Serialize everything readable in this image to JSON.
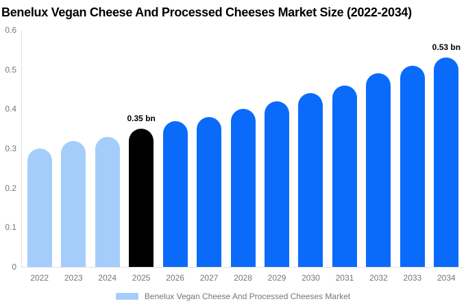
{
  "title": "Benelux Vegan Cheese And Processed Cheeses Market Size (2022-2034)",
  "colors": {
    "historical_bar": "#a5cdfb",
    "highlight_bar": "#000000",
    "forecast_bar": "#0a6bfb",
    "axis_line": "#e0e0e0",
    "tick_text": "#757575",
    "annotation_text": "#000000"
  },
  "chart_data": {
    "type": "bar",
    "title": "Benelux Vegan Cheese And Processed Cheeses Market Size (2022-2034)",
    "categories": [
      "2022",
      "2023",
      "2024",
      "2025",
      "2026",
      "2027",
      "2028",
      "2029",
      "2030",
      "2031",
      "2032",
      "2033",
      "2034"
    ],
    "values": [
      0.3,
      0.32,
      0.33,
      0.35,
      0.37,
      0.38,
      0.4,
      0.42,
      0.44,
      0.46,
      0.49,
      0.51,
      0.53
    ],
    "bar_colors": [
      "#a5cdfb",
      "#a5cdfb",
      "#a5cdfb",
      "#000000",
      "#0a6bfb",
      "#0a6bfb",
      "#0a6bfb",
      "#0a6bfb",
      "#0a6bfb",
      "#0a6bfb",
      "#0a6bfb",
      "#0a6bfb",
      "#0a6bfb"
    ],
    "unit": "bn",
    "xlabel": "",
    "ylabel": "",
    "ylim": [
      0,
      0.6
    ],
    "yticks": [
      0,
      0.1,
      0.2,
      0.3,
      0.4,
      0.5,
      0.6
    ],
    "ytick_labels": [
      "0",
      "0.1",
      "0.2",
      "0.3",
      "0.4",
      "0.5",
      "0.6"
    ],
    "grid": false,
    "annotations": [
      {
        "category": "2025",
        "label": "0.35 bn"
      },
      {
        "category": "2034",
        "label": "0.53 bn"
      }
    ],
    "legend": [
      {
        "label": "Benelux Vegan Cheese And Processed Cheeses Market",
        "color": "#a5cdfb"
      }
    ],
    "legend_position": "bottom"
  }
}
